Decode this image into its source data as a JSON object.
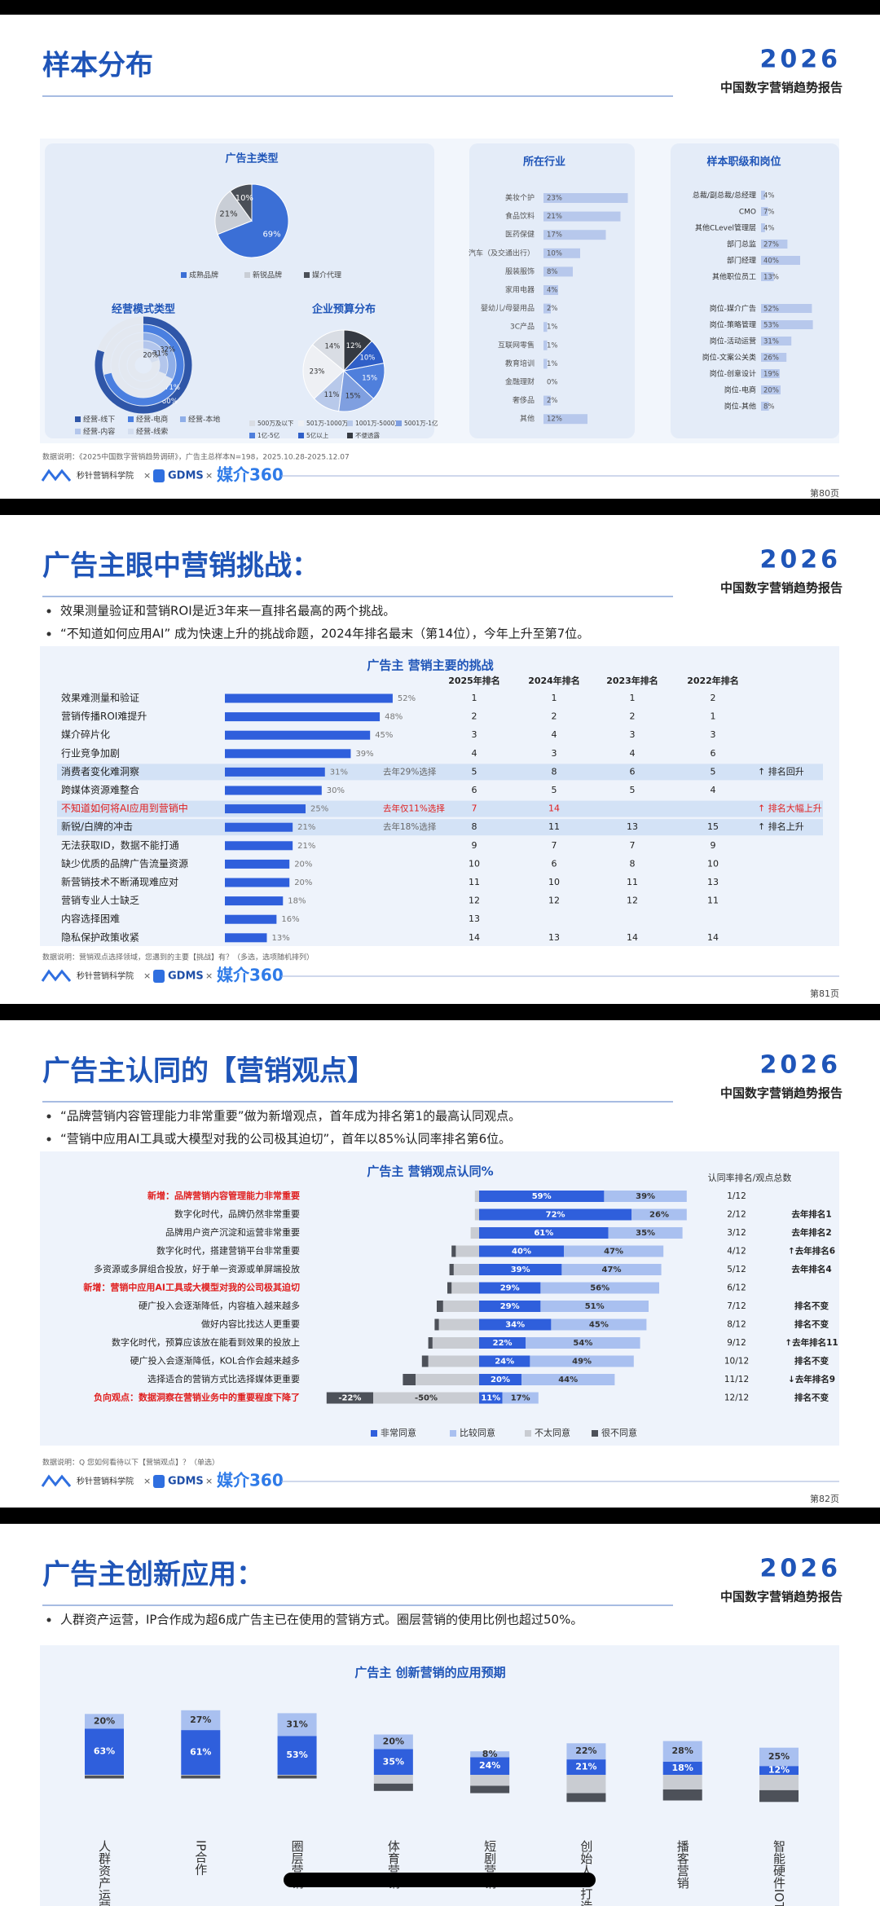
{
  "header": {
    "brand": "2026",
    "report": "中国数字营销趋势报告"
  },
  "footer": {
    "logo1": "秒针营销科学院",
    "sep": "×",
    "logo2": "GDMS",
    "logo3": "媒介360"
  },
  "slides": [
    {
      "title": "样本分布",
      "page": "第80页",
      "footnote": "数据说明：《2025中国数字营销趋势调研》，广告主总样本N=198，2025.10.28-2025.12.07",
      "charts": [
        {
          "type": "pie",
          "title": "广告主类型",
          "categories": [
            "成熟品牌",
            "新锐品牌",
            "媒介代理"
          ],
          "values": [
            69,
            21,
            10
          ],
          "value_labels": [
            "69%",
            "21%",
            "10%"
          ],
          "colors": [
            "#3b6fd6",
            "#c9ced6",
            "#4a4f57"
          ]
        },
        {
          "type": "rings",
          "title": "经营模式类型",
          "categories": [
            "经营-线下",
            "经营-电商",
            "经营-本地",
            "经营-内容",
            "经营-线索"
          ],
          "values": [
            80,
            71,
            32,
            31,
            20
          ],
          "value_labels": [
            "80%",
            "71%",
            "32%",
            "31%",
            "20%"
          ],
          "colors": [
            "#2f56a8",
            "#4a7fe0",
            "#8eaee8",
            "#b3c6ec",
            "#d4deef"
          ]
        },
        {
          "type": "pie",
          "title": "企业预算分布",
          "direction": "counterclockwise",
          "categories": [
            "500万及以下",
            "501万-1000万",
            "1001万-5000万",
            "5001万-1亿",
            "1亿-5亿",
            "5亿以上",
            "不便透露"
          ],
          "values": [
            14,
            23,
            11,
            15,
            15,
            10,
            12
          ],
          "value_labels": [
            "14%",
            "23%",
            "11%",
            "15%",
            "15%",
            "10%",
            "12%"
          ],
          "colors": [
            "#d9dde4",
            "#eef0f4",
            "#b8c9ea",
            "#7f9fe0",
            "#4f7fdc",
            "#2f5fc8",
            "#353a42"
          ]
        },
        {
          "type": "bar",
          "title": "所在行业",
          "categories": [
            "美妆个护",
            "食品饮料",
            "医药保健",
            "汽车（及交通出行）",
            "服装服饰",
            "家用电器",
            "婴幼儿/母婴用品",
            "3C产品",
            "互联网零售",
            "教育培训",
            "金融理财",
            "奢侈品",
            "其他"
          ],
          "values": [
            23,
            21,
            17,
            10,
            8,
            4,
            2,
            1,
            1,
            1,
            0,
            2,
            12
          ],
          "value_labels": [
            "23%",
            "21%",
            "17%",
            "10%",
            "8%",
            "4%",
            "2%",
            "1%",
            "1%",
            "1%",
            "0%",
            "2%",
            "12%"
          ],
          "color": "#b7c8ec"
        },
        {
          "type": "bar-groups",
          "title": "样本职级和岗位",
          "color": "#b7c8ec",
          "groups": [
            {
              "categories": [
                "总裁/副总裁/总经理",
                "CMO",
                "其他CLevel管理层",
                "部门总监",
                "部门经理",
                "其他职位员工"
              ],
              "values": [
                4,
                7,
                4,
                27,
                40,
                13
              ],
              "value_labels": [
                "4%",
                "7%",
                "4%",
                "27%",
                "40%",
                "13%"
              ]
            },
            {
              "categories": [
                "岗位-媒介广告",
                "岗位-策略管理",
                "岗位-活动运营",
                "岗位-文案公关类",
                "岗位-创意设计",
                "岗位-电商",
                "岗位-其他"
              ],
              "values": [
                52,
                53,
                31,
                26,
                19,
                20,
                8
              ],
              "value_labels": [
                "52%",
                "53%",
                "31%",
                "26%",
                "19%",
                "20%",
                "8%"
              ]
            }
          ]
        }
      ]
    },
    {
      "title": "广告主眼中营销挑战：",
      "page": "第81页",
      "bullets": [
        "效果测量验证和营销ROI是近3年来一直排名最高的两个挑战。",
        "“不知道如何应用AI” 成为快速上升的挑战命题，2024年排名最末（第14位），今年上升至第7位。"
      ],
      "footnote": "数据说明：营销观点选择领域，您遇到的主要【挑战】有？（多选，选项随机排列）",
      "chart": {
        "type": "ranking",
        "title": "广告主 营销主要的挑战",
        "color": "#2f5fdc",
        "columns": [
          "2025年排名",
          "2024年排名",
          "2023年排名",
          "2022年排名"
        ],
        "highlight_rows": [
          4,
          6,
          7
        ],
        "alert_rows": [
          6
        ],
        "rows": [
          {
            "label": "效果难测量和验证",
            "value": 52,
            "value_label": "52%",
            "ranks": [
              1,
              1,
              1,
              2
            ]
          },
          {
            "label": "营销传播ROI难提升",
            "value": 48,
            "value_label": "48%",
            "ranks": [
              2,
              2,
              2,
              1
            ]
          },
          {
            "label": "媒介碎片化",
            "value": 45,
            "value_label": "45%",
            "ranks": [
              3,
              4,
              3,
              3
            ]
          },
          {
            "label": "行业竞争加剧",
            "value": 39,
            "value_label": "39%",
            "ranks": [
              4,
              3,
              4,
              6
            ]
          },
          {
            "label": "消费者变化难洞察",
            "value": 31,
            "value_label": "31%",
            "note": "去年29%选择",
            "ranks": [
              5,
              8,
              6,
              5
            ],
            "trend": "↑ 排名回升"
          },
          {
            "label": "跨媒体资源难整合",
            "value": 30,
            "value_label": "30%",
            "ranks": [
              6,
              5,
              5,
              4
            ]
          },
          {
            "label": "不知道如何将AI应用到营销中",
            "value": 25,
            "value_label": "25%",
            "note": "去年仅11%选择",
            "ranks": [
              7,
              14,
              null,
              null
            ],
            "trend": "↑ 排名大幅上升"
          },
          {
            "label": "新锐/白牌的冲击",
            "value": 21,
            "value_label": "21%",
            "note": "去年18%选择",
            "ranks": [
              8,
              11,
              13,
              15
            ],
            "trend": "↑ 排名上升"
          },
          {
            "label": "无法获取ID，数据不能打通",
            "value": 21,
            "value_label": "21%",
            "ranks": [
              9,
              7,
              7,
              9
            ]
          },
          {
            "label": "缺少优质的品牌广告流量资源",
            "value": 20,
            "value_label": "20%",
            "ranks": [
              10,
              6,
              8,
              10
            ]
          },
          {
            "label": "新营销技术不断涌现难应对",
            "value": 20,
            "value_label": "20%",
            "ranks": [
              11,
              10,
              11,
              13
            ]
          },
          {
            "label": "营销专业人士缺乏",
            "value": 18,
            "value_label": "18%",
            "ranks": [
              12,
              12,
              12,
              11
            ]
          },
          {
            "label": "内容选择困难",
            "value": 16,
            "value_label": "16%",
            "ranks": [
              13,
              null,
              null,
              null
            ]
          },
          {
            "label": "隐私保护政策收紧",
            "value": 13,
            "value_label": "13%",
            "ranks": [
              14,
              13,
              14,
              14
            ]
          }
        ]
      }
    },
    {
      "title": "广告主认同的【营销观点】",
      "page": "第82页",
      "bullets": [
        "“品牌营销内容管理能力非常重要”做为新增观点，首年成为排名第1的最高认同观点。",
        "“营销中应用AI工具或大模型对我的公司极其迫切”，首年以85%认同率排名第6位。"
      ],
      "footnote": "数据说明：Q 您如何看待以下【营销观点】？（单选）",
      "chart": {
        "type": "diverging-bar",
        "title": "广告主 营销观点认同%",
        "rank_header": "认同率排名/观点总数",
        "highlight_rows": [
          0,
          5,
          11
        ],
        "categories": [
          "新增：品牌营销内容管理能力非常重要",
          "数字化时代，品牌仍然非常重要",
          "品牌用户资产沉淀和运营非常重要",
          "数字化时代，搭建营销平台非常重要",
          "多资源或多屏组合投放，好于单一资源或单屏端投放",
          "新增：营销中应用AI工具或大模型对我的公司极其迫切",
          "硬广投入会逐渐降低，内容植入越来越多",
          "做好内容比找达人更重要",
          "数字化时代，预算应该放在能看到效果的投放上",
          "硬广投入会逐渐降低，KOL合作会越来越多",
          "选择适合的营销方式比选择媒体更重要",
          "负向观点：数据洞察在营销业务中的重要程度下降了"
        ],
        "series": [
          {
            "name": "非常同意",
            "color": "#2f5fdc",
            "values": [
              59,
              72,
              61,
              40,
              39,
              29,
              29,
              34,
              22,
              24,
              20,
              11
            ],
            "value_labels": [
              "59%",
              "72%",
              "61%",
              "40%",
              "39%",
              "29%",
              "29%",
              "34%",
              "22%",
              "24%",
              "20%",
              "11%"
            ]
          },
          {
            "name": "比较同意",
            "color": "#a9c0f0",
            "values": [
              39,
              26,
              35,
              47,
              47,
              56,
              51,
              45,
              54,
              49,
              44,
              17
            ],
            "value_labels": [
              "39%",
              "26%",
              "35%",
              "47%",
              "47%",
              "56%",
              "51%",
              "45%",
              "54%",
              "49%",
              "44%",
              "17%"
            ]
          },
          {
            "name": "不太同意",
            "color": "#c9ccd2",
            "values": [
              -2,
              -2,
              -4,
              -11,
              -12,
              -13,
              -17,
              -19,
              -22,
              -24,
              -30,
              -50
            ],
            "value_labels": [
              null,
              null,
              null,
              null,
              null,
              null,
              null,
              null,
              null,
              null,
              null,
              "-50%"
            ]
          },
          {
            "name": "很不同意",
            "color": "#4d5159",
            "values": [
              0,
              0,
              0,
              -2,
              -2,
              -2,
              -3,
              -2,
              -2,
              -3,
              -6,
              -22
            ],
            "value_labels": [
              null,
              null,
              null,
              null,
              null,
              null,
              null,
              null,
              null,
              null,
              null,
              "-22%"
            ]
          }
        ],
        "ranks": [
          "1/12",
          "2/12",
          "3/12",
          "4/12",
          "5/12",
          "6/12",
          "7/12",
          "8/12",
          "9/12",
          "10/12",
          "11/12",
          "12/12"
        ],
        "changes": [
          null,
          "去年排名1",
          "去年排名2",
          "↑去年排名6",
          "去年排名4",
          null,
          "排名不变",
          "排名不变",
          "↑去年排名11",
          "排名不变",
          "↓去年排名9",
          "排名不变"
        ]
      }
    },
    {
      "title": "广告主创新应用：",
      "bullets": [
        "人群资产运营，IP合作成为超6成广告主已在使用的营销方式。圈层营销的使用比例也超过50%。"
      ],
      "chart": {
        "type": "column",
        "title": "广告主 创新营销的应用预期",
        "categories": [
          "人群资产运营",
          "IP合作",
          "圈层营销",
          "体育营销",
          "短剧营销",
          "创始人IP打造",
          "播客营销",
          "智能硬件IOT"
        ],
        "series": [
          {
            "color": "#2f5fdc",
            "values": [
              63,
              61,
              53,
              35,
              24,
              21,
              18,
              12
            ],
            "value_labels": [
              "63%",
              "61%",
              "53%",
              "35%",
              "24%",
              "21%",
              "18%",
              "12%"
            ]
          },
          {
            "color": "#a9c0f0",
            "values": [
              20,
              27,
              31,
              20,
              8,
              22,
              28,
              25
            ],
            "value_labels": [
              "20%",
              "27%",
              "31%",
              "20%",
              "8%",
              "22%",
              "28%",
              "25%"
            ]
          },
          {
            "color": "#c9ccd2",
            "values": [
              -1,
              -1,
              -1,
              -12,
              -15,
              -25,
              -20,
              -21
            ]
          },
          {
            "color": "#4d5159",
            "values": [
              -4,
              -4,
              -4,
              -10,
              -10,
              -12,
              -15,
              -16
            ]
          }
        ]
      }
    }
  ]
}
